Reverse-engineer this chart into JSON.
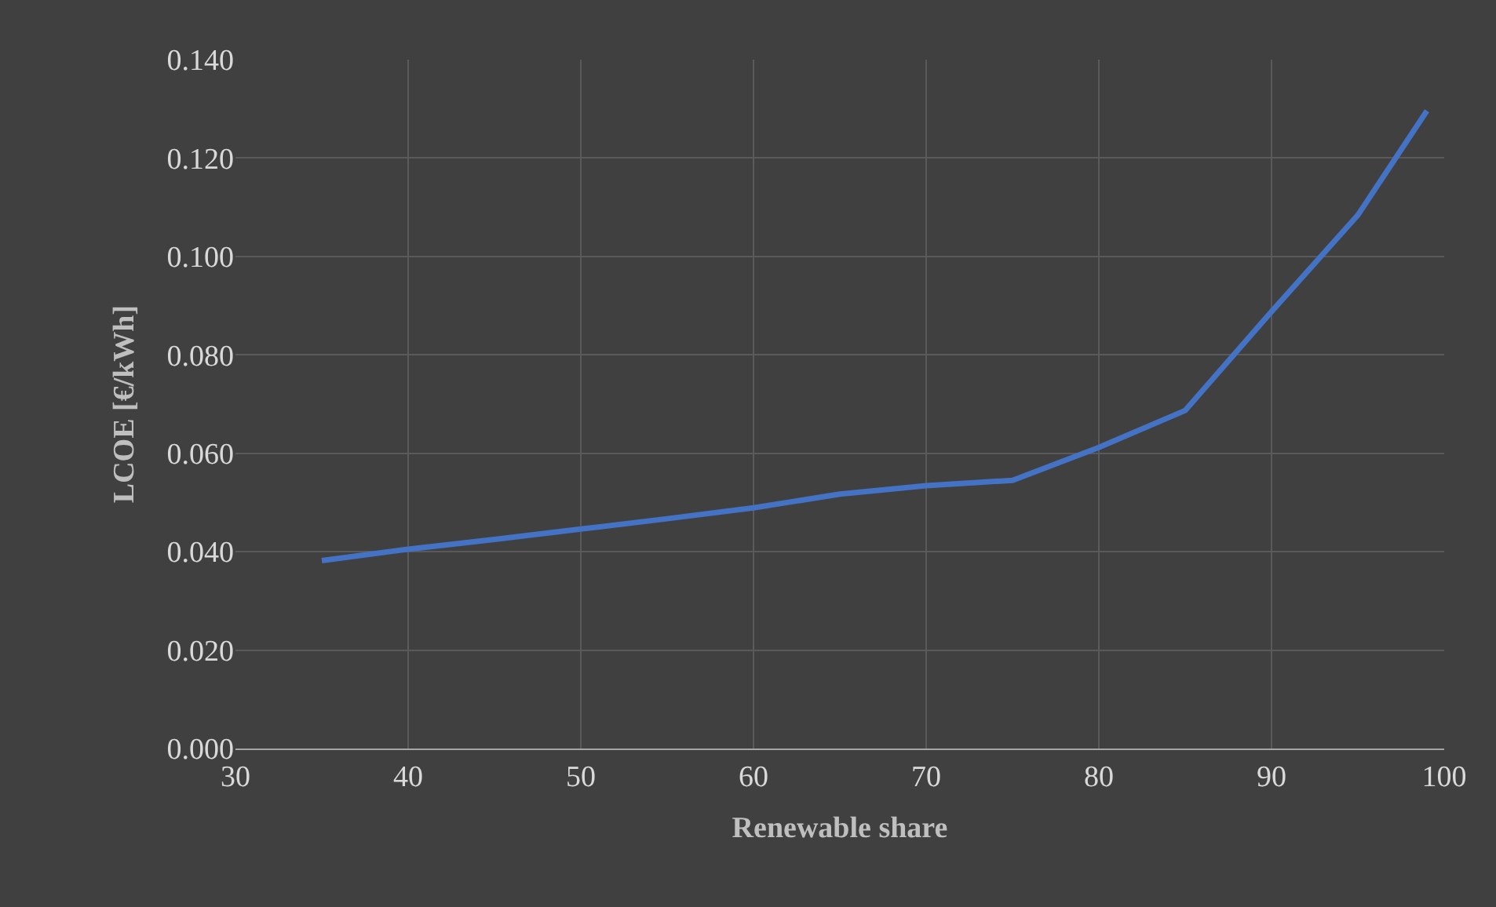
{
  "chart_data": {
    "type": "line",
    "xlabel": "Renewable share",
    "ylabel": "LCOE [€/kWh]",
    "x": [
      35,
      40,
      45,
      50,
      55,
      60,
      65,
      70,
      75,
      80,
      85,
      90,
      95,
      99
    ],
    "series": [
      {
        "color": "#4472c4",
        "values": [
          0.0382,
          0.0405,
          0.0425,
          0.0446,
          0.0467,
          0.0489,
          0.0517,
          0.0534,
          0.0545,
          0.0612,
          0.0687,
          0.0888,
          0.1084,
          0.1296
        ]
      }
    ],
    "xlim": [
      30,
      100
    ],
    "xticks": [
      30,
      40,
      50,
      60,
      70,
      80,
      90,
      100
    ],
    "ylim": [
      0,
      0.14
    ],
    "yticks": [
      {
        "value": 0,
        "label": "0.000"
      },
      {
        "value": 0.02,
        "label": "0.020"
      },
      {
        "value": 0.04,
        "label": "0.040"
      },
      {
        "value": 0.06,
        "label": "0.060"
      },
      {
        "value": 0.08,
        "label": "0.080"
      },
      {
        "value": 0.1,
        "label": "0.100"
      },
      {
        "value": 0.12,
        "label": "0.120"
      },
      {
        "value": 0.14,
        "label": "0.140"
      }
    ],
    "grid": true,
    "marker": "none",
    "line_style": "solid"
  }
}
